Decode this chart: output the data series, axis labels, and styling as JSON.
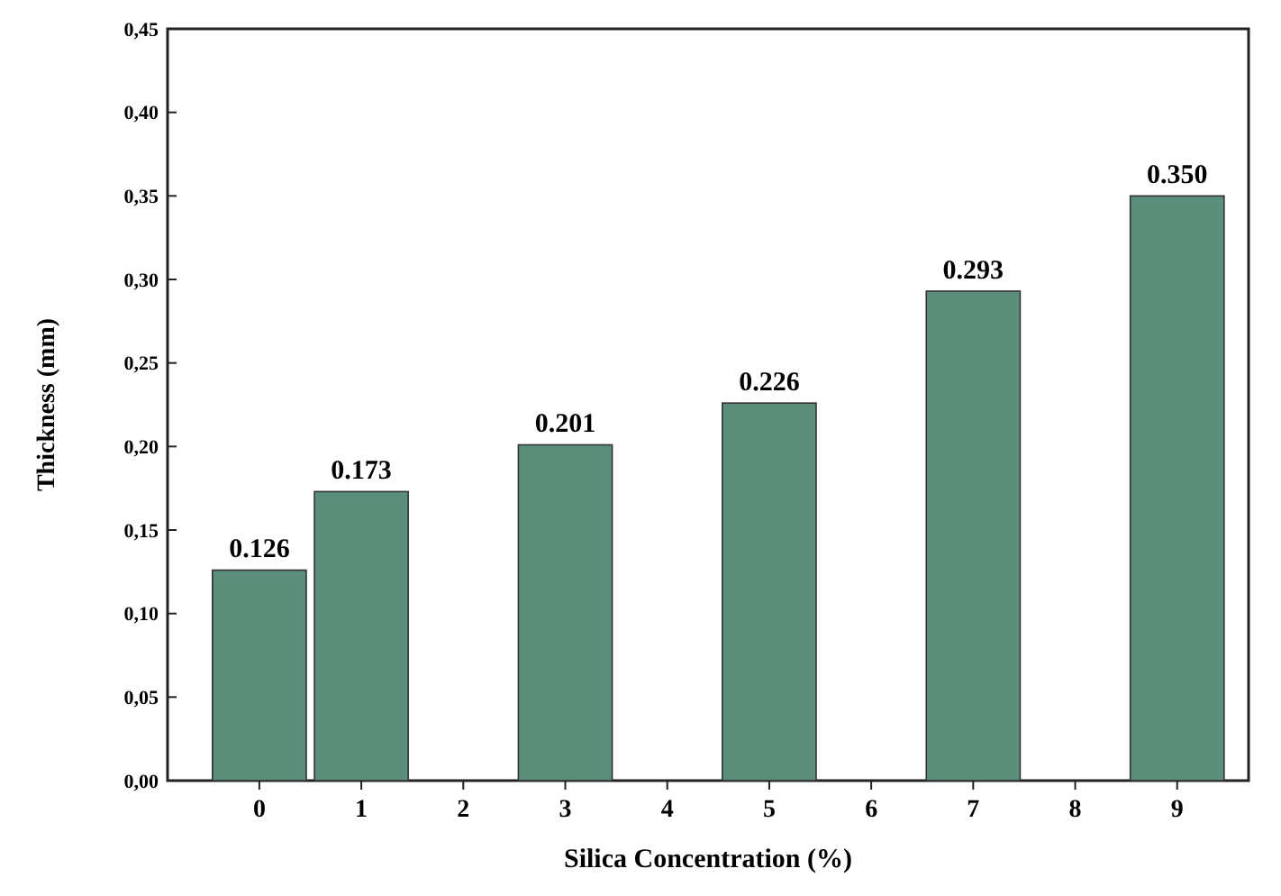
{
  "chart_data": {
    "type": "bar",
    "xlabel": "Silica Concentration (%)",
    "ylabel": "Thickness (mm)",
    "x": [
      0,
      1,
      3,
      5,
      7,
      9
    ],
    "values": [
      0.126,
      0.173,
      0.201,
      0.226,
      0.293,
      0.35
    ],
    "color": "#5b8f7c",
    "value_labels": [
      "0.126",
      "0.173",
      "0.201",
      "0.226",
      "0.293",
      "0.350"
    ],
    "xlim": [
      -0.9,
      9.7
    ],
    "xticks": [
      0,
      1,
      2,
      3,
      4,
      5,
      6,
      7,
      8,
      9
    ],
    "ylim": [
      0,
      0.45
    ],
    "yticks": [
      {
        "value": 0,
        "label": "0,00"
      },
      {
        "value": 0.05,
        "label": "0,05"
      },
      {
        "value": 0.1,
        "label": "0,10"
      },
      {
        "value": 0.15,
        "label": "0,15"
      },
      {
        "value": 0.2,
        "label": "0,20"
      },
      {
        "value": 0.25,
        "label": "0,25"
      },
      {
        "value": 0.3,
        "label": "0,30"
      },
      {
        "value": 0.35,
        "label": "0,35"
      },
      {
        "value": 0.4,
        "label": "0,40"
      },
      {
        "value": 0.45,
        "label": "0,45"
      }
    ]
  }
}
